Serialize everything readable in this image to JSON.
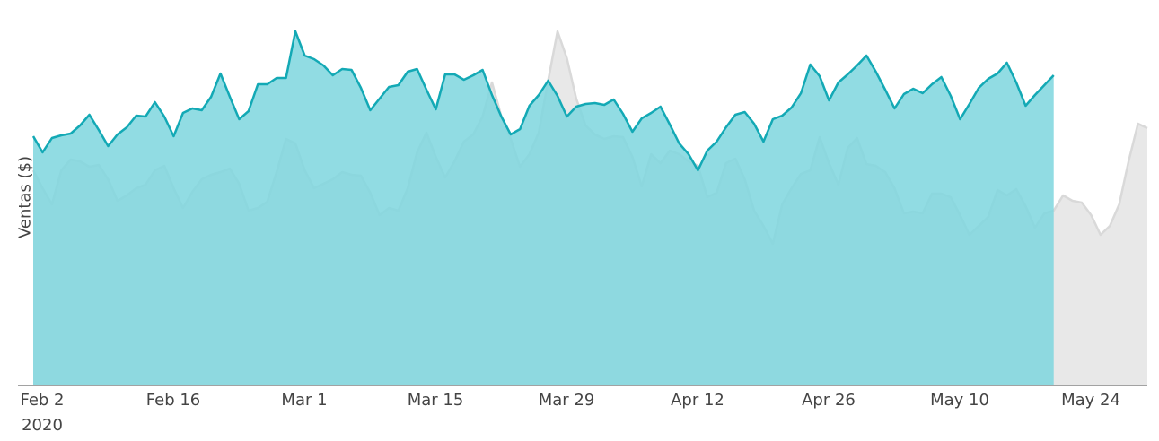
{
  "chart_data": {
    "type": "area",
    "ylabel": "Ventas ($)",
    "x": [
      "2020-02-02",
      "2020-02-03",
      "2020-02-04",
      "2020-02-05",
      "2020-02-06",
      "2020-02-07",
      "2020-02-08",
      "2020-02-09",
      "2020-02-10",
      "2020-02-11",
      "2020-02-12",
      "2020-02-13",
      "2020-02-14",
      "2020-02-15",
      "2020-02-16",
      "2020-02-17",
      "2020-02-18",
      "2020-02-19",
      "2020-02-20",
      "2020-02-21",
      "2020-02-22",
      "2020-02-23",
      "2020-02-24",
      "2020-02-25",
      "2020-02-26",
      "2020-02-27",
      "2020-02-28",
      "2020-02-29",
      "2020-03-01",
      "2020-03-02",
      "2020-03-03",
      "2020-03-04",
      "2020-03-05",
      "2020-03-06",
      "2020-03-07",
      "2020-03-08",
      "2020-03-09",
      "2020-03-10",
      "2020-03-11",
      "2020-03-12",
      "2020-03-13",
      "2020-03-14",
      "2020-03-15",
      "2020-03-16",
      "2020-03-17",
      "2020-03-18",
      "2020-03-19",
      "2020-03-20",
      "2020-03-21",
      "2020-03-22",
      "2020-03-23",
      "2020-03-24",
      "2020-03-25",
      "2020-03-26",
      "2020-03-27",
      "2020-03-28",
      "2020-03-29",
      "2020-03-30",
      "2020-03-31",
      "2020-04-01",
      "2020-04-02",
      "2020-04-03",
      "2020-04-04",
      "2020-04-05",
      "2020-04-06",
      "2020-04-07",
      "2020-04-08",
      "2020-04-09",
      "2020-04-10",
      "2020-04-11",
      "2020-04-12",
      "2020-04-13",
      "2020-04-14",
      "2020-04-15",
      "2020-04-16",
      "2020-04-17",
      "2020-04-18",
      "2020-04-19",
      "2020-04-20",
      "2020-04-21",
      "2020-04-22",
      "2020-04-23",
      "2020-04-24",
      "2020-04-25",
      "2020-04-26",
      "2020-04-27",
      "2020-04-28",
      "2020-04-29",
      "2020-04-30",
      "2020-05-01",
      "2020-05-02",
      "2020-05-03",
      "2020-05-04",
      "2020-05-05",
      "2020-05-06",
      "2020-05-07",
      "2020-05-08",
      "2020-05-09",
      "2020-05-10",
      "2020-05-11",
      "2020-05-12",
      "2020-05-13",
      "2020-05-14",
      "2020-05-15",
      "2020-05-16",
      "2020-05-17",
      "2020-05-18",
      "2020-05-19",
      "2020-05-20",
      "2020-05-21",
      "2020-05-22",
      "2020-05-23",
      "2020-05-24",
      "2020-05-25",
      "2020-05-26",
      "2020-05-27",
      "2020-05-28",
      "2020-05-29",
      "2020-05-30",
      "2020-05-31"
    ],
    "series": [
      {
        "color": "#d9d9d9",
        "fill": "#e8e8e8",
        "values": [
          60,
          55,
          50.5,
          60,
          63,
          62.5,
          61,
          61.5,
          57.5,
          51.5,
          53,
          55,
          56,
          60,
          61.25,
          55,
          49.5,
          54,
          57.5,
          58.75,
          59.5,
          60.5,
          56.25,
          48.75,
          49.5,
          51.25,
          59.5,
          68.75,
          67.5,
          60,
          55,
          56.25,
          57.5,
          59.5,
          58.75,
          58.5,
          53.75,
          47.5,
          49.5,
          48.75,
          55,
          65,
          70.5,
          63.75,
          58,
          62.5,
          68,
          70,
          75,
          84.5,
          75,
          68.75,
          61,
          64.5,
          70.5,
          85,
          98.75,
          91.25,
          80,
          72.5,
          70,
          68.75,
          69.5,
          69.25,
          63.75,
          55.5,
          64.5,
          62,
          65.5,
          64.5,
          62.5,
          61.25,
          52.5,
          53.75,
          62,
          63.25,
          57.5,
          48.75,
          44.5,
          39.5,
          50.5,
          55,
          59,
          60,
          69.25,
          62,
          56,
          66.25,
          69,
          61.75,
          61.25,
          59.5,
          55,
          48,
          48.5,
          48,
          53.5,
          53.5,
          52.5,
          47.5,
          42,
          44.5,
          47,
          54.5,
          53,
          54.75,
          50,
          44,
          48,
          48.75,
          53,
          51.5,
          51,
          47.5,
          42,
          44.5,
          50.5,
          62.5,
          73,
          71.75
        ]
      },
      {
        "color": "#13a9b5",
        "fill": "#7ed6de",
        "values": [
          69.5,
          65,
          69,
          69.75,
          70.25,
          72.5,
          75.5,
          71.25,
          66.75,
          70,
          72,
          75.25,
          75,
          79,
          75,
          69.5,
          76,
          77.25,
          76.75,
          80.5,
          87,
          80.5,
          74.25,
          76.5,
          84,
          84,
          85.75,
          85.75,
          98.75,
          92,
          91,
          89.25,
          86.5,
          88.25,
          88,
          83,
          76.75,
          80,
          83.25,
          83.75,
          87.5,
          88.25,
          82.5,
          77,
          86.75,
          86.75,
          85.25,
          86.5,
          88,
          81,
          75,
          70,
          71.5,
          78,
          81,
          85,
          80.75,
          75,
          77.75,
          78.5,
          78.75,
          78.25,
          79.75,
          75.75,
          70.75,
          74.5,
          76,
          77.75,
          72.75,
          67.5,
          64.5,
          60,
          65.5,
          68,
          72,
          75.5,
          76.25,
          73,
          68,
          74.25,
          75.25,
          77.5,
          81.5,
          89.5,
          86.25,
          79.5,
          84.5,
          86.75,
          89.25,
          92,
          87.5,
          82.5,
          77.25,
          81.25,
          82.75,
          81.5,
          84,
          86,
          80.75,
          74.25,
          78.5,
          83,
          85.5,
          87,
          90,
          84.5,
          78,
          81,
          83.75,
          86.5,
          null,
          null,
          null,
          null,
          null,
          null,
          null,
          null,
          null,
          null
        ]
      }
    ],
    "xlim": [
      "2020-02-02",
      "2020-05-31"
    ],
    "ylim": [
      0,
      100
    ],
    "xticks": [
      {
        "value": "2020-02-02",
        "label": "Feb 2\n2020"
      },
      {
        "value": "2020-02-16",
        "label": "Feb 16"
      },
      {
        "value": "2020-03-01",
        "label": "Mar 1"
      },
      {
        "value": "2020-03-15",
        "label": "Mar 15"
      },
      {
        "value": "2020-03-29",
        "label": "Mar 29"
      },
      {
        "value": "2020-04-12",
        "label": "Apr 12"
      },
      {
        "value": "2020-04-26",
        "label": "Apr 26"
      },
      {
        "value": "2020-05-10",
        "label": "May 10"
      },
      {
        "value": "2020-05-24",
        "label": "May 24"
      }
    ]
  }
}
